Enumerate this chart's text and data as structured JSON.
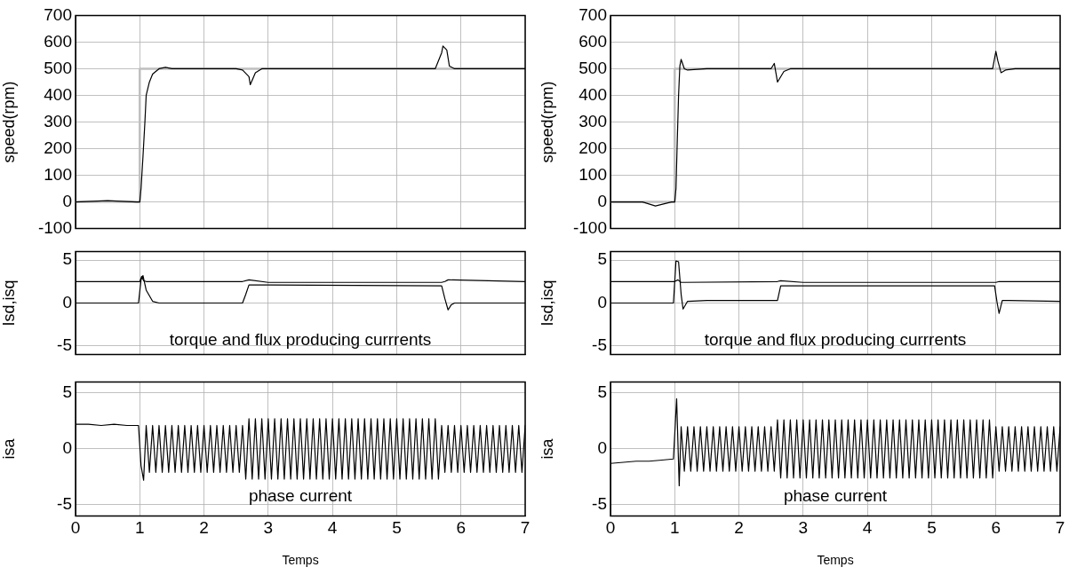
{
  "chart_data": [
    {
      "type": "line",
      "ylabel": "speed(rpm)",
      "xlim": [
        0,
        7
      ],
      "xticks": [
        0,
        1,
        2,
        3,
        4,
        5,
        6,
        7
      ],
      "ylim": [
        -100,
        700
      ],
      "yticks": [
        -100,
        0,
        100,
        200,
        300,
        400,
        500,
        600,
        700
      ],
      "tick_labels": "y",
      "grid": true,
      "legend": false,
      "marker": "none",
      "line_style": "solid",
      "series": [
        {
          "color": "#bfbfbf",
          "x": [
            0,
            1,
            1,
            7
          ],
          "values": [
            0,
            0,
            500,
            500
          ]
        },
        {
          "color": "#000000",
          "x": [
            0,
            0.5,
            0.95,
            1.0,
            1.02,
            1.05,
            1.08,
            1.1,
            1.15,
            1.2,
            1.3,
            1.4,
            1.5,
            2,
            2.5,
            2.6,
            2.7,
            2.72,
            2.8,
            2.9,
            3,
            4,
            5,
            5.6,
            5.7,
            5.72,
            5.78,
            5.82,
            5.9,
            6,
            7
          ],
          "values": [
            0,
            5,
            0,
            0,
            50,
            170,
            300,
            400,
            450,
            480,
            500,
            505,
            500,
            500,
            500,
            495,
            470,
            440,
            485,
            500,
            500,
            500,
            500,
            500,
            560,
            585,
            570,
            510,
            500,
            500,
            500
          ]
        }
      ]
    },
    {
      "type": "line",
      "ylabel": "speed(rpm)",
      "xlim": [
        0,
        7
      ],
      "xticks": [
        0,
        1,
        2,
        3,
        4,
        5,
        6,
        7
      ],
      "ylim": [
        -100,
        700
      ],
      "yticks": [
        -100,
        0,
        100,
        200,
        300,
        400,
        500,
        600,
        700
      ],
      "tick_labels": "y",
      "grid": true,
      "legend": false,
      "marker": "none",
      "line_style": "solid",
      "series": [
        {
          "color": "#bfbfbf",
          "x": [
            0,
            1,
            1,
            7
          ],
          "values": [
            0,
            0,
            500,
            500
          ]
        },
        {
          "color": "#000000",
          "x": [
            0,
            0.5,
            0.7,
            0.95,
            1.0,
            1.02,
            1.04,
            1.06,
            1.08,
            1.1,
            1.15,
            1.2,
            1.5,
            2,
            2.5,
            2.55,
            2.6,
            2.65,
            2.7,
            2.8,
            3,
            4,
            5,
            5.95,
            6.0,
            6.03,
            6.08,
            6.15,
            6.3,
            7
          ],
          "values": [
            0,
            0,
            -15,
            0,
            0,
            50,
            230,
            400,
            510,
            535,
            500,
            495,
            500,
            500,
            500,
            520,
            450,
            470,
            490,
            500,
            500,
            500,
            500,
            500,
            565,
            530,
            485,
            495,
            500,
            500
          ]
        }
      ]
    },
    {
      "type": "line",
      "ylabel": "Isd,isq",
      "xlim": [
        0,
        7
      ],
      "xticks": [
        0,
        1,
        2,
        3,
        4,
        5,
        6,
        7
      ],
      "ylim": [
        -6,
        6
      ],
      "yticks": [
        -5,
        0,
        5
      ],
      "tick_labels": "y",
      "grid": true,
      "legend": false,
      "marker": "none",
      "line_style": "solid",
      "annotations": [
        "torque and flux producing currrents"
      ],
      "series": [
        {
          "color": "#000000",
          "x": [
            0,
            1,
            1.03,
            1.06,
            1.1,
            2.6,
            2.7,
            3,
            5.7,
            5.75,
            5.8,
            7
          ],
          "values": [
            2.5,
            2.5,
            3.1,
            2.6,
            2.5,
            2.5,
            2.7,
            2.4,
            2.4,
            2.5,
            2.7,
            2.5
          ]
        },
        {
          "color": "#000000",
          "x": [
            0,
            0.98,
            1.02,
            1.05,
            1.1,
            1.2,
            1.3,
            2.6,
            2.65,
            2.7,
            3,
            5.7,
            5.75,
            5.8,
            5.85,
            5.9,
            7
          ],
          "values": [
            0,
            0,
            2.7,
            3.2,
            1.5,
            0.2,
            0,
            0,
            1,
            2.1,
            2.1,
            2.0,
            0.5,
            -0.8,
            -0.2,
            0,
            0
          ]
        }
      ]
    },
    {
      "type": "line",
      "ylabel": "Isd,isq",
      "xlim": [
        0,
        7
      ],
      "xticks": [
        0,
        1,
        2,
        3,
        4,
        5,
        6,
        7
      ],
      "ylim": [
        -6,
        6
      ],
      "yticks": [
        -5,
        0,
        5
      ],
      "tick_labels": "y",
      "grid": true,
      "legend": false,
      "marker": "none",
      "line_style": "solid",
      "annotations": [
        "torque and flux producing currrents"
      ],
      "series": [
        {
          "color": "#000000",
          "x": [
            0,
            1,
            1.05,
            1.1,
            2.6,
            2.65,
            3,
            6,
            6.05,
            7
          ],
          "values": [
            2.5,
            2.5,
            2.7,
            2.4,
            2.5,
            2.6,
            2.4,
            2.4,
            2.5,
            2.5
          ]
        },
        {
          "color": "#000000",
          "x": [
            0,
            0.98,
            1.02,
            1.06,
            1.1,
            1.13,
            1.2,
            1.5,
            2.55,
            2.6,
            2.65,
            3,
            5.98,
            6.02,
            6.05,
            6.1,
            6.2,
            7
          ],
          "values": [
            0,
            0,
            4.9,
            4.8,
            1,
            -0.7,
            0.2,
            0.3,
            0.3,
            0.3,
            2.0,
            2.0,
            2.0,
            0,
            -1.2,
            0.3,
            0.3,
            0.2
          ]
        }
      ]
    },
    {
      "type": "line",
      "ylabel": "isa",
      "xlabel": "Temps",
      "xlim": [
        0,
        7
      ],
      "xticks": [
        0,
        1,
        2,
        3,
        4,
        5,
        6,
        7
      ],
      "ylim": [
        -6,
        6
      ],
      "yticks": [
        -5,
        0,
        5
      ],
      "grid": true,
      "legend": false,
      "marker": "none",
      "line_style": "solid",
      "annotations": [
        "phase current"
      ],
      "series": [
        {
          "color": "#000000",
          "x": [
            0,
            0.2,
            0.4,
            0.6,
            0.8,
            0.98,
            1.02,
            1.06,
            1.1,
            1.15,
            1.2,
            1.25,
            1.3,
            1.35,
            1.4,
            1.45,
            1.5,
            1.55,
            1.6,
            1.65,
            1.7,
            1.75,
            1.8,
            1.85,
            1.9,
            1.95,
            2,
            2.05,
            2.1,
            2.15,
            2.2,
            2.25,
            2.3,
            2.35,
            2.4,
            2.45,
            2.5,
            2.55,
            2.6,
            2.65,
            2.7,
            2.75,
            2.8,
            2.85,
            2.9,
            2.95,
            3,
            3.05,
            3.1,
            3.15,
            3.2,
            3.25,
            3.3,
            3.35,
            3.4,
            3.45,
            3.5,
            3.55,
            3.6,
            3.65,
            3.7,
            3.75,
            3.8,
            3.85,
            3.9,
            3.95,
            4,
            4.05,
            4.1,
            4.15,
            4.2,
            4.25,
            4.3,
            4.35,
            4.4,
            4.45,
            4.5,
            4.55,
            4.6,
            4.65,
            4.7,
            4.75,
            4.8,
            4.85,
            4.9,
            4.95,
            5,
            5.05,
            5.1,
            5.15,
            5.2,
            5.25,
            5.3,
            5.35,
            5.4,
            5.45,
            5.5,
            5.55,
            5.6,
            5.65,
            5.7,
            5.75,
            5.8,
            5.85,
            5.9,
            5.95,
            6,
            6.05,
            6.1,
            6.15,
            6.2,
            6.25,
            6.3,
            6.35,
            6.4,
            6.45,
            6.5,
            6.55,
            6.6,
            6.65,
            6.7,
            6.75,
            6.8,
            6.85,
            6.9,
            6.95,
            7
          ],
          "values": [
            2.2,
            2.2,
            2.1,
            2.2,
            2.1,
            2.1,
            -1.5,
            -2.8,
            2.1,
            -2.1,
            2.1,
            -2.1,
            2.1,
            -2.1,
            2.1,
            -2.1,
            2.1,
            -2.1,
            2.1,
            -2.1,
            2.1,
            -2.1,
            2.1,
            -2.1,
            2.1,
            -2.1,
            2.1,
            -2.1,
            2.1,
            -2.1,
            2.1,
            -2.1,
            2.1,
            -2.1,
            2.1,
            -2.1,
            2.1,
            -2.1,
            2.1,
            -2.7,
            2.7,
            -2.7,
            2.7,
            -2.7,
            2.7,
            -2.7,
            2.7,
            -2.7,
            2.7,
            -2.7,
            2.7,
            -2.7,
            2.7,
            -2.7,
            2.7,
            -2.7,
            2.7,
            -2.7,
            2.7,
            -2.7,
            2.7,
            -2.7,
            2.7,
            -2.7,
            2.7,
            -2.7,
            2.7,
            -2.7,
            2.7,
            -2.7,
            2.7,
            -2.7,
            2.7,
            -2.7,
            2.7,
            -2.7,
            2.7,
            -2.7,
            2.7,
            -2.7,
            2.7,
            -2.7,
            2.7,
            -2.7,
            2.7,
            -2.7,
            2.7,
            -2.7,
            2.7,
            -2.7,
            2.7,
            -2.7,
            2.7,
            -2.7,
            2.7,
            -2.7,
            2.7,
            -2.7,
            2.7,
            -2.7,
            2.1,
            -2.1,
            2.1,
            -2.1,
            2.1,
            -2.1,
            2.1,
            -2.1,
            2.1,
            -2.1,
            2.1,
            -2.1,
            2.1,
            -2.1,
            2.1,
            -2.1,
            2.1,
            -2.1,
            2.1,
            -2.1,
            2.1,
            -2.1,
            2.1,
            -2.1,
            2.1,
            -2.1,
            2.1
          ]
        }
      ]
    },
    {
      "type": "line",
      "ylabel": "isa",
      "xlabel": "Temps",
      "xlim": [
        0,
        7
      ],
      "xticks": [
        0,
        1,
        2,
        3,
        4,
        5,
        6,
        7
      ],
      "ylim": [
        -6,
        6
      ],
      "yticks": [
        -5,
        0,
        5
      ],
      "grid": true,
      "legend": false,
      "marker": "none",
      "line_style": "solid",
      "annotations": [
        "phase current"
      ],
      "series": [
        {
          "color": "#000000",
          "x": [
            0,
            0.2,
            0.4,
            0.6,
            0.8,
            0.98,
            1.03,
            1.07,
            1.1,
            1.15,
            1.2,
            1.25,
            1.3,
            1.35,
            1.4,
            1.45,
            1.5,
            1.55,
            1.6,
            1.65,
            1.7,
            1.75,
            1.8,
            1.85,
            1.9,
            1.95,
            2,
            2.05,
            2.1,
            2.15,
            2.2,
            2.25,
            2.3,
            2.35,
            2.4,
            2.45,
            2.5,
            2.55,
            2.6,
            2.65,
            2.7,
            2.75,
            2.8,
            2.85,
            2.9,
            2.95,
            3,
            3.05,
            3.1,
            3.15,
            3.2,
            3.25,
            3.3,
            3.35,
            3.4,
            3.45,
            3.5,
            3.55,
            3.6,
            3.65,
            3.7,
            3.75,
            3.8,
            3.85,
            3.9,
            3.95,
            4,
            4.05,
            4.1,
            4.15,
            4.2,
            4.25,
            4.3,
            4.35,
            4.4,
            4.45,
            4.5,
            4.55,
            4.6,
            4.65,
            4.7,
            4.75,
            4.8,
            4.85,
            4.9,
            4.95,
            5,
            5.05,
            5.1,
            5.15,
            5.2,
            5.25,
            5.3,
            5.35,
            5.4,
            5.45,
            5.5,
            5.55,
            5.6,
            5.65,
            5.7,
            5.75,
            5.8,
            5.85,
            5.9,
            5.95,
            6,
            6.05,
            6.1,
            6.15,
            6.2,
            6.25,
            6.3,
            6.35,
            6.4,
            6.45,
            6.5,
            6.55,
            6.6,
            6.65,
            6.7,
            6.75,
            6.8,
            6.85,
            6.9,
            6.95,
            7
          ],
          "values": [
            -1.3,
            -1.2,
            -1.1,
            -1.1,
            -1.0,
            -0.9,
            4.5,
            -3.3,
            2.0,
            -2.0,
            2.0,
            -2.0,
            2.0,
            -2.0,
            2.0,
            -2.0,
            2.0,
            -2.0,
            2.0,
            -2.0,
            2.0,
            -2.0,
            2.0,
            -2.0,
            2.0,
            -2.0,
            2.0,
            -2.0,
            2.0,
            -2.0,
            2.0,
            -2.0,
            2.0,
            -2.0,
            2.0,
            -2.0,
            2.0,
            -2.0,
            2.6,
            -2.6,
            2.6,
            -2.6,
            2.6,
            -2.6,
            2.6,
            -2.6,
            2.6,
            -2.6,
            2.6,
            -2.6,
            2.6,
            -2.6,
            2.6,
            -2.6,
            2.6,
            -2.6,
            2.6,
            -2.6,
            2.6,
            -2.6,
            2.6,
            -2.6,
            2.6,
            -2.6,
            2.6,
            -2.6,
            2.6,
            -2.6,
            2.6,
            -2.6,
            2.6,
            -2.6,
            2.6,
            -2.6,
            2.6,
            -2.6,
            2.6,
            -2.6,
            2.6,
            -2.6,
            2.6,
            -2.6,
            2.6,
            -2.6,
            2.6,
            -2.6,
            2.6,
            -2.6,
            2.6,
            -2.6,
            2.6,
            -2.6,
            2.6,
            -2.6,
            2.6,
            -2.6,
            2.6,
            -2.6,
            2.6,
            -2.6,
            2.6,
            -2.6,
            2.6,
            -2.6,
            2.6,
            -2.6,
            2.0,
            -2.0,
            2.0,
            -2.0,
            2.0,
            -2.0,
            2.0,
            -2.0,
            2.0,
            -2.0,
            2.0,
            -2.0,
            2.0,
            -2.0,
            2.0,
            -2.0,
            2.0,
            -2.0,
            2.0,
            -2.0,
            2.0
          ]
        }
      ]
    }
  ]
}
